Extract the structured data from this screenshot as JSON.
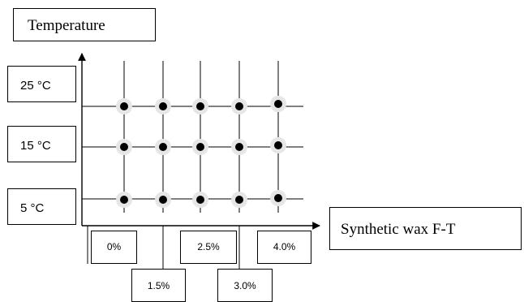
{
  "y_axis_title": "Temperature",
  "x_axis_title": "Synthetic wax F-T",
  "temperatures": [
    "25 °C",
    "15 °C",
    "5 °C"
  ],
  "wax_levels": [
    "0%",
    "1.5%",
    "2.5%",
    "3.0%",
    "4.0%"
  ],
  "colors": {
    "line": "#000000",
    "point_fill": "#000000",
    "point_halo": "#e6e6e6"
  }
}
